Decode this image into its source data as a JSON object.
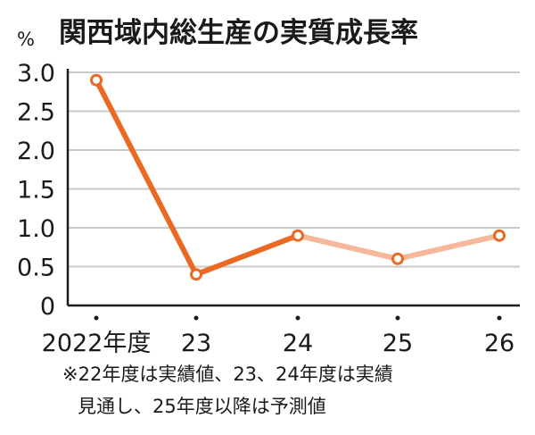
{
  "chart_data": {
    "type": "line",
    "title": "関西域内総生産の実質成長率",
    "unit": "%",
    "ylim": [
      0,
      3.0
    ],
    "y_ticks": [
      "3.0",
      "2.5",
      "2.0",
      "1.5",
      "1.0",
      "0.5",
      "0"
    ],
    "y_tick_values": [
      3.0,
      2.5,
      2.0,
      1.5,
      1.0,
      0.5,
      0
    ],
    "categories": [
      "2022年度",
      "23",
      "24",
      "25",
      "26"
    ],
    "values": [
      2.9,
      0.4,
      0.9,
      0.6,
      0.9
    ],
    "segment_styles": [
      "actual",
      "actual",
      "forecast",
      "forecast"
    ],
    "grid": true,
    "note_lines": [
      "※22年度は実績値、23、24年度は実績",
      "見通し、25年度以降は予測値"
    ]
  },
  "colors": {
    "actual_line": "#ea6a24",
    "forecast_line": "#f6b79b",
    "marker_fill": "#ffffff",
    "marker_stroke": "#ea6a24",
    "grid": "#c9c9c9",
    "axis": "#1a1a1a",
    "text": "#1a1a1a"
  }
}
